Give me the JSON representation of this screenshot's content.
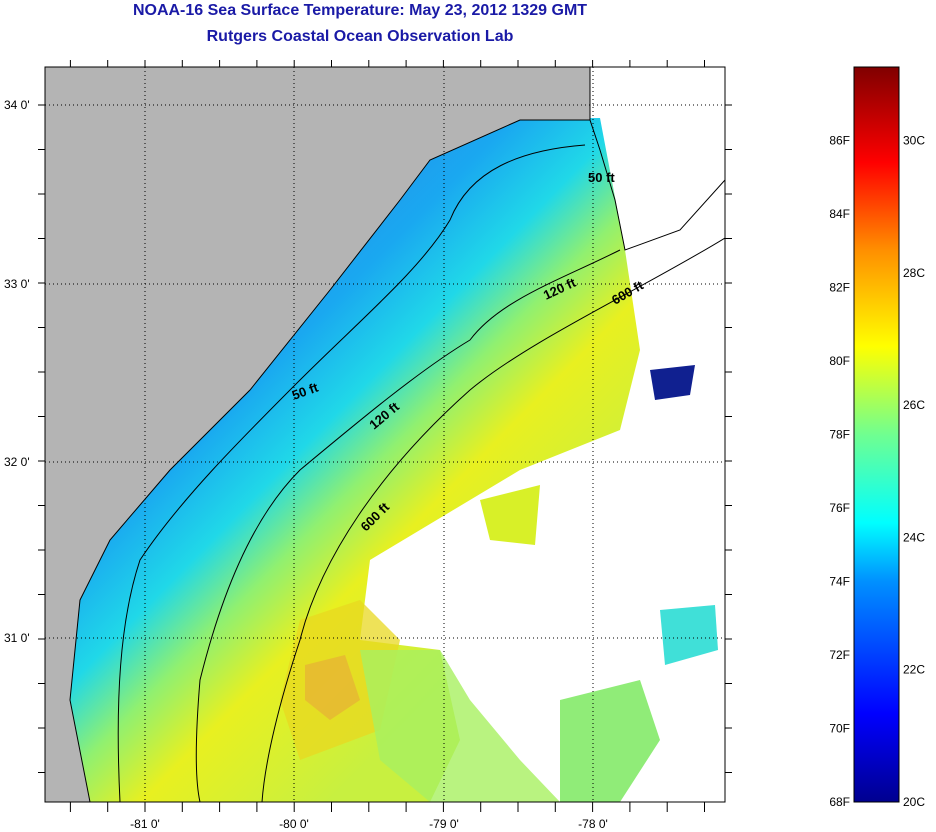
{
  "title": "NOAA-16 Sea Surface Temperature:  May 23, 2012 1329 GMT",
  "subtitle": "Rutgers Coastal Ocean Observation Lab",
  "axes": {
    "lat_labels": [
      "34 0'",
      "33 0'",
      "32 0'",
      "31 0'"
    ],
    "lon_labels": [
      "-81 0'",
      "-80 0'",
      "-79 0'",
      "-78 0'"
    ]
  },
  "contours": {
    "labels": [
      "50 ft",
      "120 ft",
      "600 ft",
      "50 ft",
      "120 ft",
      "600 ft"
    ]
  },
  "colorbar": {
    "fahrenheit": [
      "86F",
      "84F",
      "82F",
      "80F",
      "78F",
      "76F",
      "74F",
      "72F",
      "70F",
      "68F"
    ],
    "celsius": [
      "30C",
      "28C",
      "26C",
      "24C",
      "22C",
      "20C"
    ],
    "min_f": 68,
    "max_f": 88
  },
  "colors": {
    "land": "#b4b4b4",
    "title": "#1a1aa6",
    "cloud": "#ffffff"
  }
}
